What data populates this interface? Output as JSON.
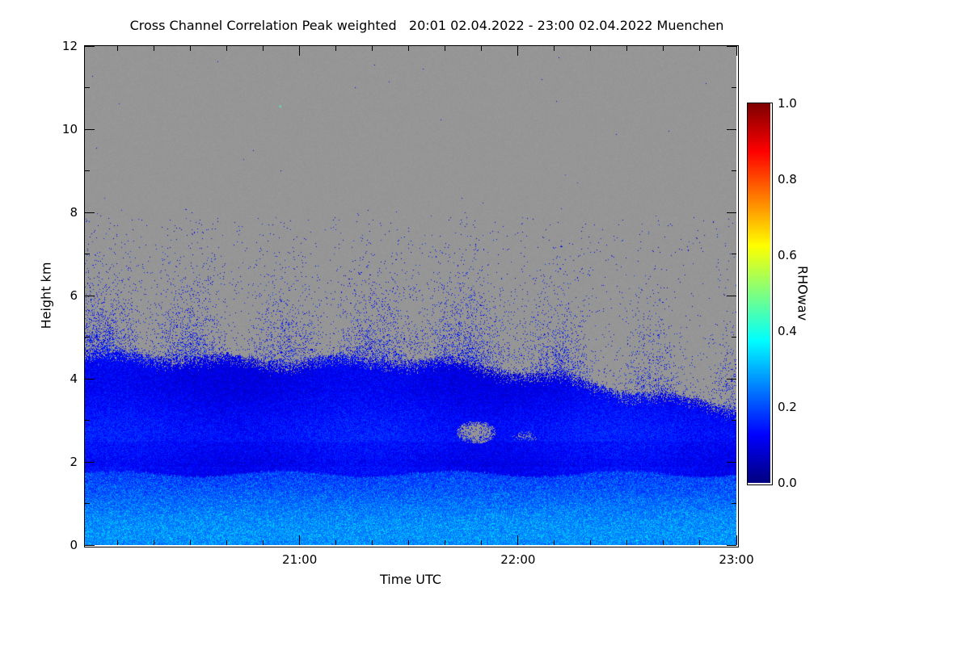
{
  "figure": {
    "background_color": "#ffffff"
  },
  "chart_data": {
    "type": "heatmap",
    "title": "Cross Channel Correlation Peak weighted",
    "time_range": "20:01 02.04.2022 - 23:00 02.04.2022",
    "station": "Muenchen",
    "title_full": "Cross Channel Correlation Peak weighted   20:01 02.04.2022 - 23:00 02.04.2022 Muenchen",
    "xlabel": "Time UTC",
    "ylabel": "Height km",
    "colorbar_label": "RHOwav",
    "colormap": "jet",
    "x_axis": {
      "start_label": "20:01",
      "end_label": "23:00",
      "total_minutes": 179,
      "major_ticks": [
        {
          "label": "21:00",
          "minute": 59
        },
        {
          "label": "22:00",
          "minute": 119
        },
        {
          "label": "23:00",
          "minute": 179
        }
      ],
      "minor_interval_minutes": 10
    },
    "y_axis": {
      "min_km": 0,
      "max_km": 12,
      "major_ticks": [
        0,
        2,
        4,
        6,
        8,
        10,
        12
      ],
      "minor_ticks": [
        1,
        3,
        5,
        7,
        9,
        11
      ]
    },
    "colorbar": {
      "min": 0.0,
      "max": 1.0,
      "ticks": [
        {
          "label": "0.0",
          "value": 0.0
        },
        {
          "label": "0.2",
          "value": 0.2
        },
        {
          "label": "0.4",
          "value": 0.4
        },
        {
          "label": "0.6",
          "value": 0.6
        },
        {
          "label": "0.8",
          "value": 0.8
        },
        {
          "label": "1.0",
          "value": 1.0
        }
      ]
    },
    "field": {
      "seed": 42,
      "background_gray": "#969696",
      "aerosol_top_km_start": 4.55,
      "aerosol_top_km_end": 3.42,
      "aerosol_decline_start_frac": 0.45,
      "speckle_top_km": 8.1,
      "surface_layer_top_km": 1.72,
      "rho_mid_mean": 0.125,
      "rho_surface_mean": 0.19,
      "gray_blobs": [
        {
          "t_frac": 0.6,
          "h_km": 2.72,
          "rx_frac": 0.03,
          "ry_km": 0.27,
          "density": 0.9
        },
        {
          "t_frac": 0.675,
          "h_km": 2.62,
          "rx_frac": 0.02,
          "ry_km": 0.13,
          "density": 0.3
        }
      ],
      "isolated_dots": [
        {
          "t_frac": 0.3,
          "h_km": 10.55,
          "value": 0.45
        }
      ]
    }
  }
}
